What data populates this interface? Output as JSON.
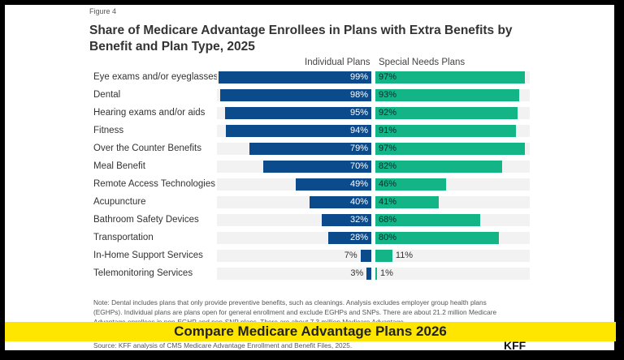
{
  "figure_label": "Figure 4",
  "chart_data": {
    "type": "bar",
    "title": "Share of Medicare Advantage Enrollees in Plans with Extra Benefits by Benefit and Plan Type, 2025",
    "categories": [
      "Eye exams and/or eyeglasses",
      "Dental",
      "Hearing exams and/or aids",
      "Fitness",
      "Over the Counter Benefits",
      "Meal Benefit",
      "Remote Access Technologies",
      "Acupuncture",
      "Bathroom Safety Devices",
      "Transportation",
      "In-Home Support Services",
      "Telemonitoring Services"
    ],
    "series": [
      {
        "name": "Individual Plans",
        "color": "#0b4a8b",
        "values": [
          99,
          98,
          95,
          94,
          79,
          70,
          49,
          40,
          32,
          28,
          7,
          3
        ]
      },
      {
        "name": "Special Needs Plans",
        "color": "#13b586",
        "values": [
          97,
          93,
          92,
          91,
          97,
          82,
          46,
          41,
          68,
          80,
          11,
          1
        ]
      }
    ],
    "unit": "%",
    "xlim": [
      0,
      100
    ],
    "grid": false,
    "legend": "top (column headers)"
  },
  "note": "Note: Dental includes plans that only provide preventive benefits, such as cleanings. Analysis excludes employer group health plans (EGHPs). Individual plans are plans open for general enrollment and exclude EGHPs and SNPs. There are about 21.2 million Medicare Advantage enrollees in non-EGHP and non-SNP plans. There are about 7.3 million Medicare Advantage",
  "source": "Source: KFF analysis of CMS Medicare Advantage Enrollment and Benefit Files, 2025.",
  "logo": "KFF",
  "banner": "Compare Medicare Advantage Plans 2026"
}
